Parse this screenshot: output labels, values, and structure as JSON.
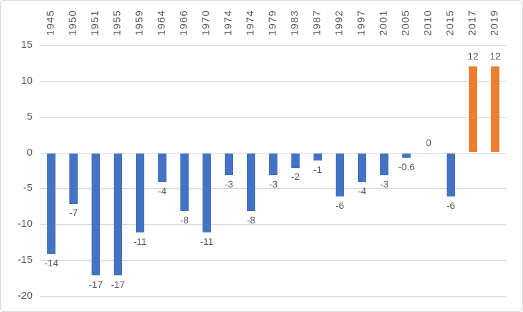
{
  "chart": {
    "background_color": "#FFFFFF",
    "border_color": "#D9D9D9"
  },
  "chart_data": {
    "type": "bar",
    "title": "",
    "xlabel": "",
    "ylabel": "",
    "categories": [
      "1945",
      "1950",
      "1951",
      "1955",
      "1959",
      "1964",
      "1966",
      "1970",
      "1974",
      "1974",
      "1979",
      "1983",
      "1987",
      "1992",
      "1997",
      "2001",
      "2005",
      "2010",
      "2015",
      "2017",
      "2019"
    ],
    "values": [
      -14,
      -7,
      -17,
      -17,
      -11,
      -4,
      -8,
      -11,
      -3,
      -8,
      -3,
      -2,
      -1,
      -6,
      -4,
      -3,
      -0.6,
      0,
      -6,
      12,
      12
    ],
    "data_labels": [
      "-14",
      "-7",
      "-17",
      "-17",
      "-11",
      "-4",
      "-8",
      "-11",
      "-3",
      "-8",
      "-3",
      "-2",
      "-1",
      "-6",
      "-4",
      "-3",
      "-0.6",
      "0",
      "-6",
      "12",
      "12"
    ],
    "ylim": [
      -20,
      15
    ],
    "yticks": [
      15,
      10,
      5,
      0,
      -5,
      -10,
      -15,
      -20
    ],
    "grid": true,
    "legend": false,
    "category_label_position": "top",
    "category_label_rotation": -90,
    "colors": {
      "negative_bar": "#4472C4",
      "positive_bar": "#ED7D31",
      "gridline": "#D9D9D9",
      "text": "#595959"
    }
  }
}
